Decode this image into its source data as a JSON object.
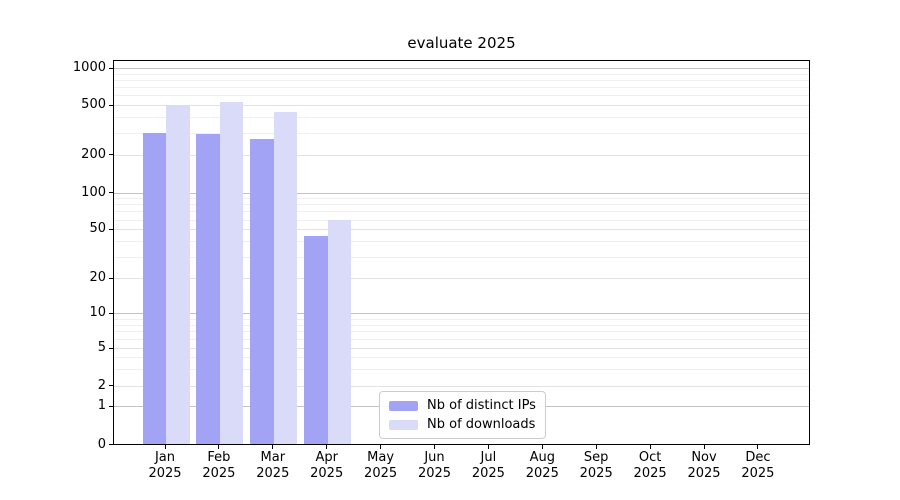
{
  "chart_data": {
    "type": "bar",
    "title": "evaluate 2025",
    "scale": "symlog",
    "grid": true,
    "ylim": [
      0,
      1000
    ],
    "yticks": [
      0,
      1,
      2,
      5,
      10,
      20,
      50,
      100,
      200,
      500,
      1000
    ],
    "categories": [
      "Jan",
      "Feb",
      "Mar",
      "Apr",
      "May",
      "Jun",
      "Jul",
      "Aug",
      "Sep",
      "Oct",
      "Nov",
      "Dec"
    ],
    "x_tick_second_line": "2025",
    "series": [
      {
        "key": "distinct-ips",
        "name": "Nb of distinct IPs",
        "color": "#a3a3f5",
        "values": [
          300,
          295,
          265,
          44,
          null,
          null,
          null,
          null,
          null,
          null,
          null,
          null
        ]
      },
      {
        "key": "downloads",
        "name": "Nb of downloads",
        "color": "#dadaf9",
        "values": [
          500,
          530,
          440,
          60,
          null,
          null,
          null,
          null,
          null,
          null,
          null,
          null
        ]
      }
    ],
    "legend_position": "lower center inside plot"
  }
}
